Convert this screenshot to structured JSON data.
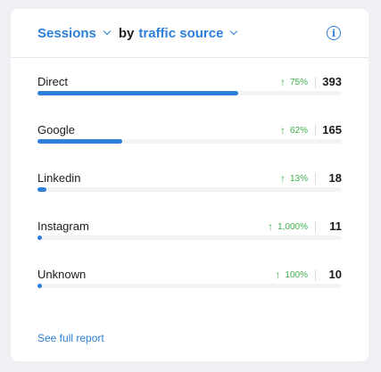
{
  "header": {
    "metric_label": "Sessions",
    "by_label": "by",
    "dimension_label": "traffic source",
    "info_glyph": "i"
  },
  "rows": [
    {
      "name": "Direct",
      "change": "75%",
      "count": "393",
      "fill": 0.66
    },
    {
      "name": "Google",
      "change": "62%",
      "count": "165",
      "fill": 0.28
    },
    {
      "name": "Linkedin",
      "change": "13%",
      "count": "18",
      "fill": 0.03
    },
    {
      "name": "Instagram",
      "change": "1,000%",
      "count": "11",
      "fill": 0.015
    },
    {
      "name": "Unknown",
      "change": "100%",
      "count": "10",
      "fill": 0.015
    }
  ],
  "footer": {
    "link_label": "See full report"
  },
  "colors": {
    "accent": "#2e7fd9",
    "positive": "#3fae4a",
    "track": "#f1f3f5"
  },
  "icons": {
    "change": "arrow-up-icon",
    "info": "info-icon",
    "dropdown": "chevron-down-icon"
  }
}
